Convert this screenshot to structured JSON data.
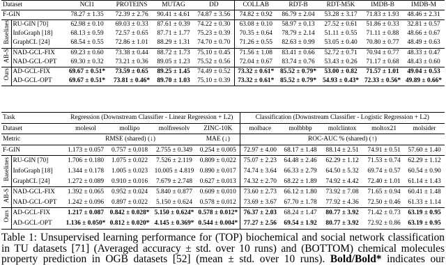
{
  "top_table": {
    "header": [
      "Dataset",
      "NCI1",
      "PROTEINS",
      "MUTAG",
      "DD",
      "COLLAB",
      "RDT-B",
      "RDT-M5K",
      "IMDB-B",
      "IMDB-M"
    ],
    "reference_row": {
      "method": "F-GIN",
      "cells": [
        "78.27 ± 1.35",
        "72.39 ± 2.76",
        "90.41 ± 4.61",
        "74.87 ± 3.56",
        "74.82 ± 0.92",
        "86.79 ± 2.04",
        "53.28 ± 3.17",
        "71.83 ± 1.93",
        "48.46 ± 2.31"
      ]
    },
    "groups": [
      {
        "label": "Baselines",
        "rows": [
          {
            "method": "RU-GIN [70]",
            "cells": [
              "62.98 ± 0.10",
              "69.03 ± 0.33",
              "87.61 ± 0.39",
              "74.22 ± 0.30",
              "63.08 ± 0.10",
              "58.97 ± 0.13",
              "27.52 ± 0.61",
              "51.86 ± 0.33",
              "32.81 ± 0.57"
            ]
          },
          {
            "method": "InfoGraph [18]",
            "cells": [
              "68.13 ± 0.59",
              "72.57 ± 0.65",
              "87.71 ± 1.77",
              "75.23 ± 0.39",
              "70.35 ± 0.64",
              "78.79 ± 2.14",
              "51.11 ± 0.55",
              "71.11 ± 0.88",
              "48.66 ± 0.67"
            ]
          },
          {
            "method": "GraphCL [24]",
            "cells": [
              "68.54 ± 0.55",
              "72.86 ± 1.01",
              "88.29 ± 1.31",
              "74.70 ± 0.70",
              "71.26 ± 0.55",
              "82.63 ± 0.99",
              "53.05 ± 0.40",
              "70.80 ± 0.77",
              "48.49 ± 0.63"
            ]
          }
        ]
      },
      {
        "label": "AB-S",
        "rows": [
          {
            "method": "NAD-GCL-FIX",
            "cells": [
              "69.23 ± 0.60",
              "73.38 ± 0.44",
              "88.72 ± 1.73",
              "75.10 ± 0.45",
              "71.56 ± 1.08",
              "83.41 ± 0.66",
              "52.72 ± 0.71",
              "70.94 ± 0.77",
              "48.33 ± 0.47"
            ]
          },
          {
            "method": "NAD-GCL-OPT",
            "cells": [
              "69.30 ± 0.32",
              "73.21 ± 0.36",
              "89.05 ± 1.23",
              "75.52 ± 0.56",
              "72.04 ± 0.67",
              "83.74 ± 0.76",
              "53.43 ± 0.26",
              "71.17 ± 0.68",
              "48.43 ± 0.60"
            ]
          }
        ]
      },
      {
        "label": "Ours",
        "rows": [
          {
            "method": "AD-GCL-FIX",
            "cells": [
              "69.67 ± 0.51*",
              "73.59 ± 0.65",
              "89.25 ± 1.45",
              "74.49 ± 0.52",
              "73.32 ± 0.61*",
              "85.52 ± 0.79*",
              "53.00 ± 0.82",
              "71.57 ± 1.01",
              "49.04 ± 0.53"
            ],
            "bold": [
              0,
              1,
              2,
              4,
              5,
              6,
              7,
              8
            ]
          },
          {
            "method": "AD-GCL-OPT",
            "cells": [
              "69.67 ± 0.51*",
              "73.81 ± 0.46*",
              "89.70 ± 1.03",
              "75.10 ± 0.39",
              "73.32 ± 0.61*",
              "85.52 ± 0.79*",
              "54.93 ± 0.43*",
              "72.33 ± 0.56*",
              "49.89 ± 0.66*"
            ],
            "bold": [
              0,
              1,
              2,
              4,
              5,
              6,
              7,
              8
            ]
          }
        ]
      }
    ]
  },
  "bottom_table": {
    "task_row": {
      "label": "Task",
      "regression": "Regression (Downstream Classifier - Linear Regression + L2)",
      "classification": "Classification (Downstream Classifier - Logistic Regression + L2)"
    },
    "header": [
      "Dataset",
      "molesol",
      "mollipo",
      "molfreesolv",
      "ZINC-10K",
      "molbace",
      "molbbbp",
      "molclintox",
      "moltox21",
      "molsider"
    ],
    "metric_row": {
      "label": "Metric",
      "rmse": "RMSE (shared) (↓)",
      "mae": "MAE (↓)",
      "auc": "ROC-AUC % (shared) (↑)"
    },
    "reference_row": {
      "method": "F-GIN",
      "cells": [
        "1.173 ± 0.057",
        "0.757 ± 0.018",
        "2.755 ± 0.349",
        "0.254 ± 0.005",
        "72.97 ± 4.00",
        "68.17 ± 1.48",
        "88.14 ± 2.51",
        "74.91 ± 0.51",
        "57.60 ± 1.40"
      ]
    },
    "groups": [
      {
        "label": "Baselines",
        "rows": [
          {
            "method": "RU-GIN [70]",
            "cells": [
              "1.706 ± 0.180",
              "1.075 ± 0.022",
              "7.526 ± 2.119",
              "0.809 ± 0.022",
              "75.07 ± 2.23",
              "64.48 ± 2.46",
              "62.29 ± 1.12",
              "71.53 ± 0.74",
              "62.29 ± 1.12"
            ]
          },
          {
            "method": "InfoGraph [18]",
            "cells": [
              "1.344 ± 0.178",
              "1.005 ± 0.023",
              "10.005 ± 4.819",
              "0.890 ± 0.017",
              "74.74 ± 3.64",
              "66.33 ± 2.79",
              "64.50 ± 5.32",
              "69.74 ± 0.57",
              "60.54 ± 0.90"
            ]
          },
          {
            "method": "GraphCL [24]",
            "cells": [
              "1.272 ± 0.089",
              "0.910 ± 0.016",
              "7.679 ± 2.748",
              "0.627 ± 0.013",
              "74.32 ± 2.70",
              "68.22 ± 1.89",
              "74.92 ± 4.42",
              "72.40 ± 1.01",
              "61.14 ± 1.43"
            ]
          }
        ]
      },
      {
        "label": "AB-S",
        "rows": [
          {
            "method": "NAD-GCL-FIX",
            "cells": [
              "1.392 ± 0.065",
              "0.952 ± 0.024",
              "5.840 ± 0.877",
              "0.609 ± 0.010",
              "73.60 ± 2.73",
              "66.12 ± 1.80",
              "73.92 ± 7.08",
              "71.65 ± 0.94",
              "60.41 ± 1.48"
            ]
          },
          {
            "method": "NAD-GCL-OPT",
            "cells": [
              "1.242 ± 0.096",
              "0.897 ± 0.022",
              "5.150 ± 0.624",
              "0.578 ± 0.012",
              "73.69 ± 3.67",
              "67.70 ± 1.78",
              "77.92 ± 4.36",
              "72.50 ± 0.46",
              "61.33 ± 1.14"
            ]
          }
        ]
      },
      {
        "label": "Ours",
        "rows": [
          {
            "method": "AD-GCL-FIX",
            "cells": [
              "1.217 ± 0.087",
              "0.842 ± 0.028*",
              "5.150 ± 0.624*",
              "0.578 ± 0.012*",
              "76.37 ± 2.03",
              "68.24 ± 1.47",
              "80.77 ± 3.92",
              "71.42 ± 0.73",
              "63.19 ± 0.95"
            ],
            "bold": [
              0,
              1,
              2,
              3,
              4,
              6,
              8
            ]
          },
          {
            "method": "AD-GCL-OPT",
            "cells": [
              "1.136 ± 0.050*",
              "0.812 ± 0.020*",
              "4.145 ± 0.369*",
              "0.544 ± 0.004*",
              "77.27 ± 2.56",
              "69.54 ± 1.92",
              "80.77 ± 3.92",
              "72.92 ± 0.86",
              "63.19 ± 0.95"
            ],
            "bold": [
              0,
              1,
              2,
              3,
              4,
              5,
              6,
              8
            ]
          }
        ]
      }
    ]
  },
  "caption": {
    "before": "Table 1: Unsupervised learning performance for (TOP) biochemical and social network classification in TU datasets [71] (Averaged accuracy ± std. over 10 runs) and (BOTTOM) chemical molecules property prediction in OGB datasets [52] (mean ± std. over 10 runs). ",
    "emphasis": "Bold/Bold*",
    "after": " indicates our methods outperform baselines"
  }
}
